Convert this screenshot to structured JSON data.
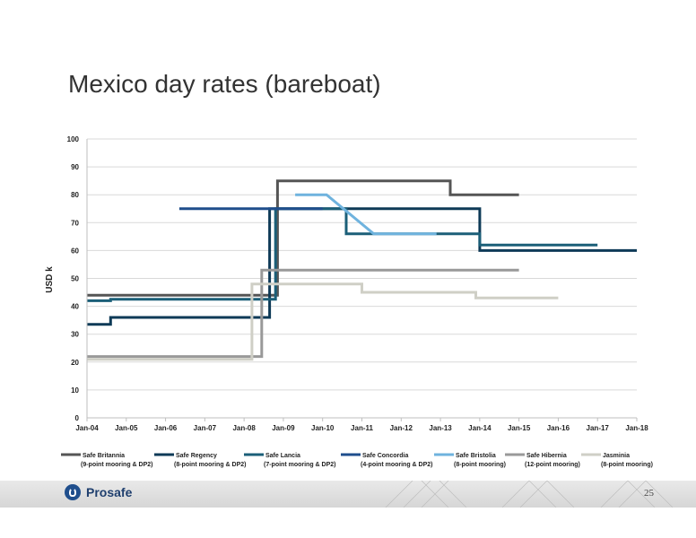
{
  "title": "Mexico day rates (bareboat)",
  "footer": {
    "brand": "Prosafe",
    "page_number": "25"
  },
  "chart_data": {
    "type": "line",
    "step": true,
    "ylabel": "USD k",
    "ylim": [
      0,
      100
    ],
    "yticks": [
      0,
      10,
      20,
      30,
      40,
      50,
      60,
      70,
      80,
      90,
      100
    ],
    "xlim": [
      2004.0,
      2018.0
    ],
    "xticks": [
      {
        "label": "Jan-04",
        "x": 2004.0
      },
      {
        "label": "Jan-05",
        "x": 2005.0
      },
      {
        "label": "Jan-06",
        "x": 2006.0
      },
      {
        "label": "Jan-07",
        "x": 2007.0
      },
      {
        "label": "Jan-08",
        "x": 2008.0
      },
      {
        "label": "Jan-09",
        "x": 2009.0
      },
      {
        "label": "Jan-10",
        "x": 2010.0
      },
      {
        "label": "Jan-11",
        "x": 2011.0
      },
      {
        "label": "Jan-12",
        "x": 2012.0
      },
      {
        "label": "Jan-13",
        "x": 2013.0
      },
      {
        "label": "Jan-14",
        "x": 2014.0
      },
      {
        "label": "Jan-15",
        "x": 2015.0
      },
      {
        "label": "Jan-16",
        "x": 2016.0
      },
      {
        "label": "Jan-17",
        "x": 2017.0
      },
      {
        "label": "Jan-18",
        "x": 2018.0
      }
    ],
    "grid": true,
    "legend_position": "bottom",
    "series": [
      {
        "name": "Safe Britannia",
        "subtitle": "(9-point mooring & DP2)",
        "color": "#555555",
        "points": [
          [
            2004.0,
            44
          ],
          [
            2008.85,
            44
          ],
          [
            2008.85,
            85
          ],
          [
            2013.25,
            85
          ],
          [
            2013.25,
            80
          ],
          [
            2015.0,
            80
          ]
        ]
      },
      {
        "name": "Safe Regency",
        "subtitle": "(8-point mooring & DP2)",
        "color": "#0e3a57",
        "points": [
          [
            2004.0,
            33.5
          ],
          [
            2004.6,
            33.5
          ],
          [
            2004.6,
            36
          ],
          [
            2008.65,
            36
          ],
          [
            2008.65,
            75
          ],
          [
            2014.0,
            75
          ],
          [
            2014.0,
            60
          ],
          [
            2018.0,
            60
          ]
        ]
      },
      {
        "name": "Safe Lancia",
        "subtitle": "(7-point mooring & DP2)",
        "color": "#1b5f78",
        "points": [
          [
            2004.0,
            42
          ],
          [
            2004.6,
            42
          ],
          [
            2004.6,
            42.5
          ],
          [
            2008.8,
            42.5
          ],
          [
            2008.8,
            75
          ],
          [
            2010.6,
            75
          ],
          [
            2010.6,
            66
          ],
          [
            2014.0,
            66
          ],
          [
            2014.0,
            62
          ],
          [
            2017.0,
            62
          ]
        ]
      },
      {
        "name": "Safe Concordia",
        "subtitle": "(4-point mooring & DP2)",
        "color": "#1f4e8c",
        "points": [
          [
            2006.35,
            75
          ],
          [
            2008.5,
            75
          ],
          [
            2009.75,
            75
          ],
          [
            2010.0,
            75
          ]
        ]
      },
      {
        "name": "Safe Bristolia",
        "subtitle": "(8-point mooring)",
        "color": "#6fb3de",
        "points": [
          [
            2009.3,
            80
          ],
          [
            2010.1,
            80
          ],
          [
            2011.3,
            66
          ],
          [
            2012.9,
            66
          ]
        ]
      },
      {
        "name": "Safe Hibernia",
        "subtitle": "(12-point mooring)",
        "color": "#999999",
        "points": [
          [
            2004.0,
            22
          ],
          [
            2008.45,
            22
          ],
          [
            2008.45,
            53
          ],
          [
            2015.0,
            53
          ]
        ]
      },
      {
        "name": "Jasminia",
        "subtitle": "(8-point mooring)",
        "color": "#cfcfc6",
        "points": [
          [
            2004.0,
            21
          ],
          [
            2008.2,
            21
          ],
          [
            2008.2,
            48
          ],
          [
            2011.0,
            48
          ],
          [
            2011.0,
            45
          ],
          [
            2013.9,
            45
          ],
          [
            2013.9,
            43
          ],
          [
            2016.0,
            43
          ]
        ]
      }
    ]
  }
}
